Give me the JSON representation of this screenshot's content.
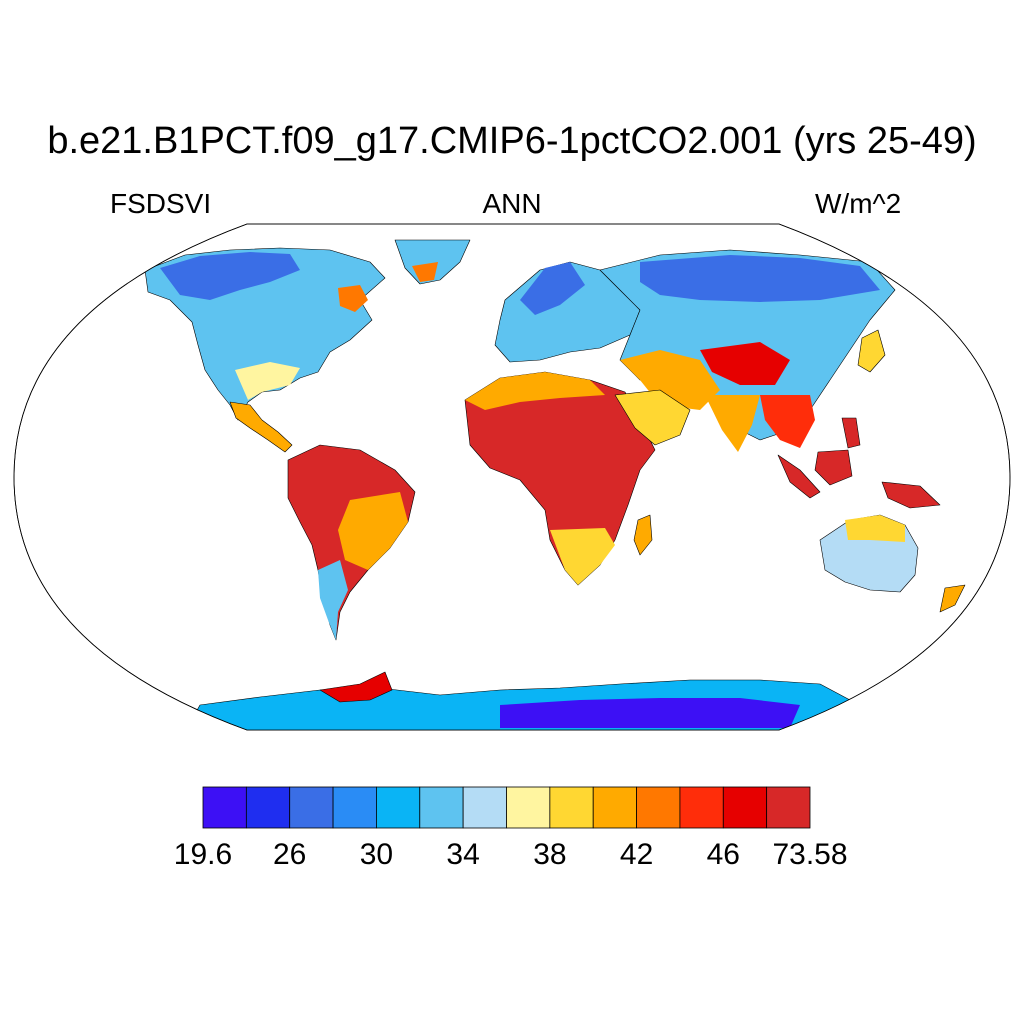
{
  "title": "b.e21.B1PCT.f09_g17.CMIP6-1pctCO2.001 (yrs 25-49)",
  "variable": "FSDSVI",
  "season": "ANN",
  "units": "W/m^2",
  "colorbar": {
    "colors": [
      "#3d10f5",
      "#1f2ef0",
      "#3a6ee6",
      "#2a8cf5",
      "#0ab4f5",
      "#5ec3f0",
      "#b4dcf5",
      "#fff5a0",
      "#ffd732",
      "#ffaa00",
      "#ff7800",
      "#ff2d0a",
      "#e60000",
      "#d72828"
    ],
    "labels": [
      "19.6",
      "26",
      "30",
      "34",
      "38",
      "42",
      "46",
      "73.58"
    ]
  },
  "map": {
    "projection": "Robinson",
    "colors": {
      "sahara": "#d72828",
      "amazon": "#d72828",
      "maritime_continent": "#d72828",
      "tibet": "#e60000",
      "antarctica_interior": "#3d10f5",
      "siberia": "#3a6ee6",
      "canada": "#2a8cf5",
      "australia_interior": "#b4dcf5"
    }
  }
}
